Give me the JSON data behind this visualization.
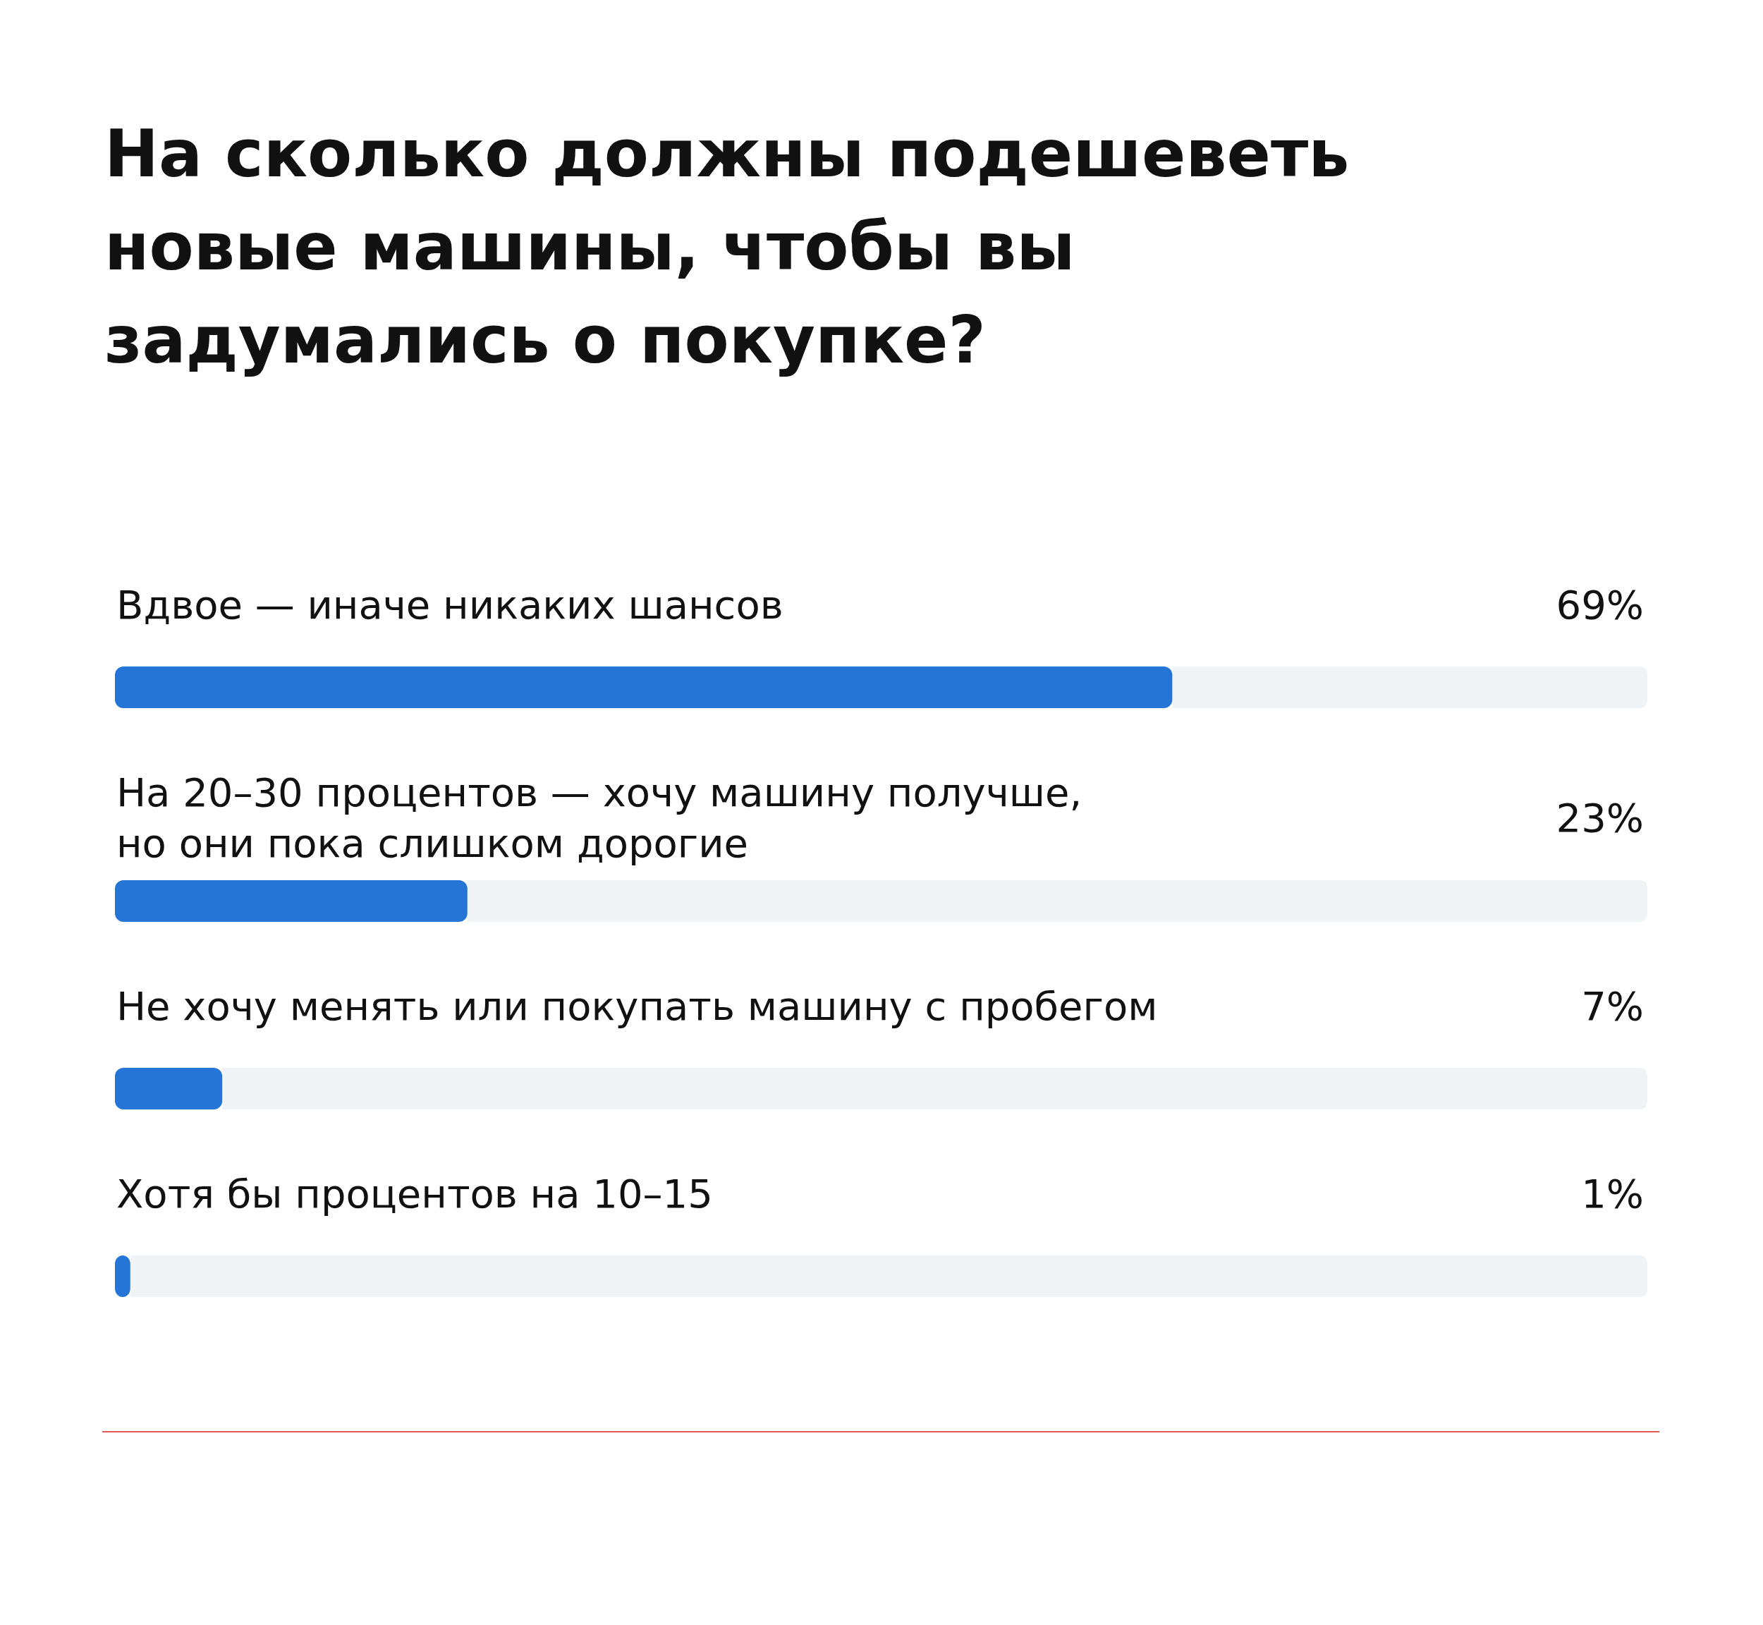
{
  "chart_data": {
    "type": "bar",
    "orientation": "horizontal",
    "title": "На сколько должны подешеветь новые машины, чтобы вы задумались о покупке?",
    "categories": [
      "Вдвое — иначе никаких шансов",
      "На 20–30 процентов — хочу машину получше,\nно они пока слишком дорогие",
      "Не хочу менять или покупать машину с пробегом",
      "Хотя бы процентов на 10–15"
    ],
    "values": [
      69,
      23,
      7,
      1
    ],
    "value_labels": [
      "69%",
      "23%",
      "7%",
      "1%"
    ],
    "color": "#2575d6",
    "xlim": [
      0,
      100
    ]
  }
}
